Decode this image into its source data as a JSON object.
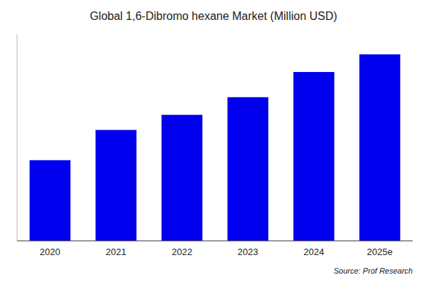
{
  "chart_data": {
    "type": "bar",
    "title": "Global 1,6-Dibromo hexane Market (Million USD)",
    "categories": [
      "2020",
      "2021",
      "2022",
      "2023",
      "2024",
      "2025e"
    ],
    "values": [
      32,
      44,
      50,
      57,
      67,
      74
    ],
    "color": "#0000EE",
    "ylim": [
      0,
      82
    ],
    "grid": false,
    "tick_labels": "x",
    "annotations": [
      "Source: Prof Research"
    ]
  }
}
